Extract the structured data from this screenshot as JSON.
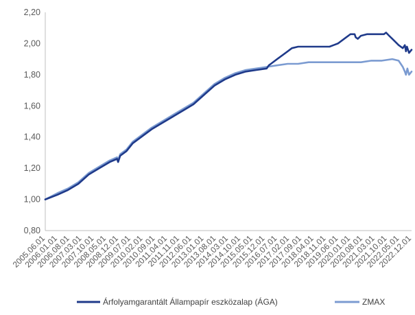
{
  "chart_data": {
    "type": "line",
    "title": "",
    "xlabel": "",
    "ylabel": "",
    "ylim": [
      0.8,
      2.2
    ],
    "y_ticks": [
      "0,80",
      "1,00",
      "1,20",
      "1,40",
      "1,60",
      "1,80",
      "2,00",
      "2,20"
    ],
    "y_tick_values": [
      0.8,
      1.0,
      1.2,
      1.4,
      1.6,
      1.8,
      2.0,
      2.2
    ],
    "x_range": [
      2005.42,
      2022.92
    ],
    "x_ticks": [
      "2005.06.01",
      "2006.01.01",
      "2006.08.01",
      "2007.03.01",
      "2007.10.01",
      "2008.05.01",
      "2008.12.01",
      "2009.07.01",
      "2010.02.01",
      "2010.09.01",
      "2011.04.01",
      "2011.11.01",
      "2012.06.01",
      "2013.01.01",
      "2013.08.01",
      "2014.03.01",
      "2014.10.01",
      "2015.05.01",
      "2015.12.01",
      "2016.07.01",
      "2017.02.01",
      "2017.09.01",
      "2018.04.01",
      "2018.11.01",
      "2019.06.01",
      "2020.01.01",
      "2020.08.01",
      "2021.03.01",
      "2021.10.01",
      "2022.05.01",
      "2022.12.01"
    ],
    "grid": false,
    "legend_position": "bottom",
    "series": [
      {
        "name": "Árfolyamgarantált Állampapír eszközalap (ÁGA)",
        "color": "#1f3a8a",
        "x": [
          2005.42,
          2006.0,
          2006.5,
          2007.0,
          2007.5,
          2008.0,
          2008.5,
          2008.85,
          2008.9,
          2009.0,
          2009.3,
          2009.6,
          2010.0,
          2010.5,
          2011.0,
          2011.5,
          2012.0,
          2012.5,
          2013.0,
          2013.5,
          2014.0,
          2014.5,
          2015.0,
          2015.5,
          2016.0,
          2016.1,
          2016.2,
          2016.5,
          2016.8,
          2017.0,
          2017.2,
          2017.5,
          2018.0,
          2018.5,
          2019.0,
          2019.2,
          2019.4,
          2019.5,
          2019.8,
          2020.0,
          2020.2,
          2020.25,
          2020.35,
          2020.5,
          2020.8,
          2021.0,
          2021.5,
          2021.6,
          2021.7,
          2021.85,
          2022.0,
          2022.3,
          2022.5,
          2022.6,
          2022.65,
          2022.7,
          2022.8,
          2022.92
        ],
        "y": [
          1.0,
          1.03,
          1.06,
          1.1,
          1.16,
          1.2,
          1.24,
          1.26,
          1.24,
          1.28,
          1.31,
          1.36,
          1.4,
          1.45,
          1.49,
          1.53,
          1.57,
          1.61,
          1.67,
          1.73,
          1.77,
          1.8,
          1.82,
          1.83,
          1.84,
          1.86,
          1.87,
          1.9,
          1.93,
          1.95,
          1.97,
          1.98,
          1.98,
          1.98,
          1.98,
          1.99,
          2.0,
          2.01,
          2.04,
          2.06,
          2.06,
          2.04,
          2.03,
          2.05,
          2.06,
          2.06,
          2.06,
          2.06,
          2.07,
          2.05,
          2.03,
          1.99,
          1.97,
          1.99,
          1.95,
          1.98,
          1.94,
          1.96
        ]
      },
      {
        "name": "ZMAX",
        "color": "#7b9bd1",
        "x": [
          2005.42,
          2006.0,
          2006.5,
          2007.0,
          2007.5,
          2008.0,
          2008.5,
          2008.85,
          2008.9,
          2009.0,
          2009.3,
          2009.6,
          2010.0,
          2010.5,
          2011.0,
          2011.5,
          2012.0,
          2012.5,
          2013.0,
          2013.5,
          2014.0,
          2014.5,
          2015.0,
          2015.5,
          2016.0,
          2016.5,
          2017.0,
          2017.5,
          2018.0,
          2018.5,
          2019.0,
          2019.5,
          2020.0,
          2020.5,
          2021.0,
          2021.5,
          2022.0,
          2022.3,
          2022.5,
          2022.6,
          2022.65,
          2022.72,
          2022.8,
          2022.92
        ],
        "y": [
          1.0,
          1.04,
          1.07,
          1.11,
          1.17,
          1.21,
          1.25,
          1.27,
          1.25,
          1.29,
          1.32,
          1.37,
          1.41,
          1.46,
          1.5,
          1.54,
          1.58,
          1.62,
          1.68,
          1.74,
          1.78,
          1.81,
          1.83,
          1.84,
          1.85,
          1.86,
          1.87,
          1.87,
          1.88,
          1.88,
          1.88,
          1.88,
          1.88,
          1.88,
          1.89,
          1.89,
          1.9,
          1.89,
          1.85,
          1.82,
          1.8,
          1.84,
          1.8,
          1.82
        ]
      }
    ]
  }
}
